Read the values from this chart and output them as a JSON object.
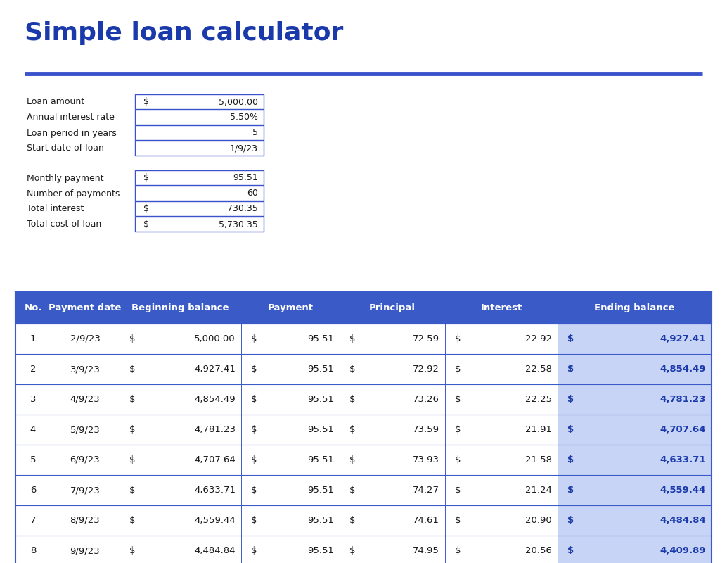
{
  "title": "Simple loan calculator",
  "title_color": "#1a3aab",
  "title_fontsize": 26,
  "separator_color": "#3a52cc",
  "bg_color": "#ffffff",
  "input_label_color": "#1a1a1a",
  "input_value_color": "#1a1a1a",
  "input_box_border": "#3a52cc",
  "input_labels": [
    "Loan amount",
    "Annual interest rate",
    "Loan period in years",
    "Start date of loan"
  ],
  "input_dollar": [
    "$",
    "",
    "",
    ""
  ],
  "input_values": [
    "5,000.00",
    "5.50%",
    "5",
    "1/9/23"
  ],
  "summary_labels": [
    "Monthly payment",
    "Number of payments",
    "Total interest",
    "Total cost of loan"
  ],
  "summary_dollar": [
    "$",
    "",
    "$",
    "$"
  ],
  "summary_values": [
    "95.51",
    "60",
    "730.35",
    "5,730.35"
  ],
  "table_header_bg": "#3a5bc7",
  "table_header_text": "#ffffff",
  "ending_balance_bg": "#c8d4f5",
  "table_border_color": "#3a5bc7",
  "table_text_color": "#1a1a1a",
  "table_blue_text": "#1a3aab",
  "table_rows": [
    [
      1,
      "2/9/23",
      "$",
      "5,000.00",
      "$",
      "95.51",
      "$",
      "72.59",
      "$",
      "22.92",
      "$",
      "4,927.41"
    ],
    [
      2,
      "3/9/23",
      "$",
      "4,927.41",
      "$",
      "95.51",
      "$",
      "72.92",
      "$",
      "22.58",
      "$",
      "4,854.49"
    ],
    [
      3,
      "4/9/23",
      "$",
      "4,854.49",
      "$",
      "95.51",
      "$",
      "73.26",
      "$",
      "22.25",
      "$",
      "4,781.23"
    ],
    [
      4,
      "5/9/23",
      "$",
      "4,781.23",
      "$",
      "95.51",
      "$",
      "73.59",
      "$",
      "21.91",
      "$",
      "4,707.64"
    ],
    [
      5,
      "6/9/23",
      "$",
      "4,707.64",
      "$",
      "95.51",
      "$",
      "73.93",
      "$",
      "21.58",
      "$",
      "4,633.71"
    ],
    [
      6,
      "7/9/23",
      "$",
      "4,633.71",
      "$",
      "95.51",
      "$",
      "74.27",
      "$",
      "21.24",
      "$",
      "4,559.44"
    ],
    [
      7,
      "8/9/23",
      "$",
      "4,559.44",
      "$",
      "95.51",
      "$",
      "74.61",
      "$",
      "20.90",
      "$",
      "4,484.84"
    ],
    [
      8,
      "9/9/23",
      "$",
      "4,484.84",
      "$",
      "95.51",
      "$",
      "74.95",
      "$",
      "20.56",
      "$",
      "4,409.89"
    ]
  ],
  "col_names": [
    "No.",
    "Payment date",
    "Beginning balance",
    "Payment",
    "Principal",
    "Interest",
    "Ending balance"
  ]
}
